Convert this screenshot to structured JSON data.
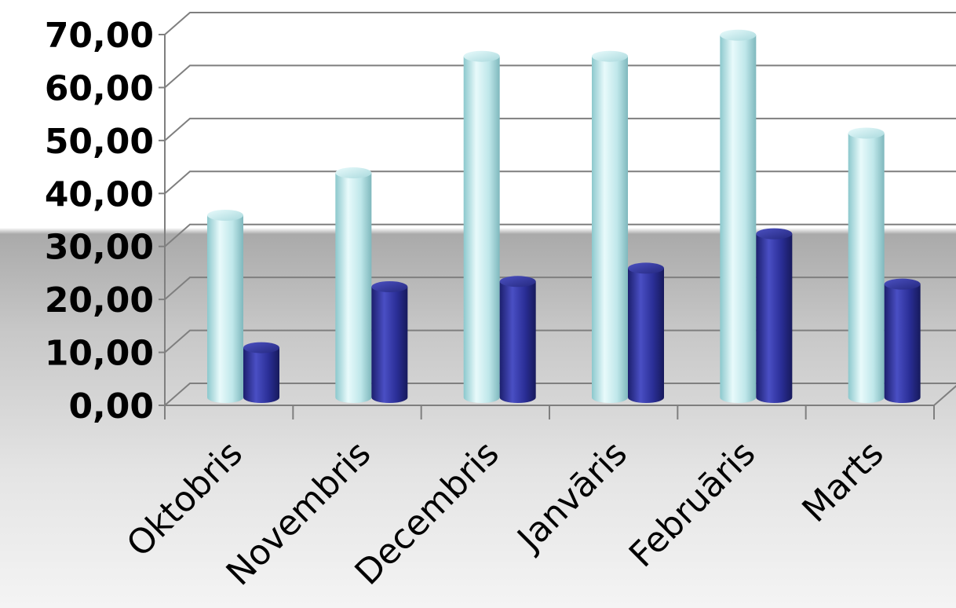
{
  "chart_data": {
    "type": "bar",
    "title": "",
    "xlabel": "",
    "ylabel": "",
    "categories": [
      "Oktobris",
      "Novembris",
      "Decembris",
      "Janvāris",
      "Februāris",
      "Marts"
    ],
    "series": [
      {
        "values": [
          35,
          43,
          65,
          65,
          69,
          50.5
        ],
        "color": "#b8e6ea"
      },
      {
        "values": [
          10,
          21.5,
          22.5,
          25,
          31.5,
          22
        ],
        "color": "#2a2e96"
      }
    ],
    "ylim": [
      0,
      70
    ],
    "yticks": [
      "0,00",
      "10,00",
      "20,00",
      "30,00",
      "40,00",
      "50,00",
      "60,00",
      "70,00"
    ],
    "grid": true,
    "legend": "none"
  }
}
